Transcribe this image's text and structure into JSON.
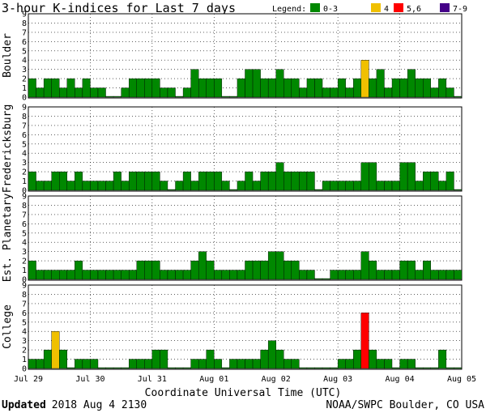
{
  "chart_data": {
    "type": "bar",
    "title": "3-hour K-indices for Last 7 days",
    "xlabel": "Coordinate Universal Time (UTC)",
    "legend": {
      "title": "Legend:",
      "placement": "top-right",
      "items": [
        {
          "label": "0-3",
          "color": "#008800"
        },
        {
          "label": "4",
          "color": "#f0c000"
        },
        {
          "label": "5,6",
          "color": "#ff0000"
        },
        {
          "label": "7-9",
          "color": "#440088"
        }
      ]
    },
    "ylim": [
      0,
      9
    ],
    "yticks": [
      0,
      1,
      2,
      3,
      4,
      5,
      6,
      7,
      8,
      9
    ],
    "x_tick_labels": [
      "Jul 29",
      "Jul 30",
      "Jul 31",
      "Aug 01",
      "Aug 02",
      "Aug 03",
      "Aug 04",
      "Aug 05"
    ],
    "series": [
      {
        "name": "Boulder",
        "values": [
          2,
          1,
          2,
          2,
          1,
          2,
          1,
          2,
          1,
          1,
          0,
          0,
          1,
          2,
          2,
          2,
          2,
          1,
          1,
          0,
          1,
          3,
          2,
          2,
          2,
          0,
          0,
          2,
          3,
          3,
          2,
          2,
          3,
          2,
          2,
          1,
          2,
          2,
          1,
          1,
          2,
          1,
          2,
          4,
          2,
          3,
          1,
          2,
          2,
          3,
          2,
          2,
          1,
          2,
          1,
          0
        ]
      },
      {
        "name": "Fredericksburg",
        "values": [
          2,
          1,
          1,
          2,
          2,
          1,
          2,
          1,
          1,
          1,
          1,
          2,
          1,
          2,
          2,
          2,
          2,
          1,
          0,
          1,
          2,
          1,
          2,
          2,
          2,
          1,
          0,
          1,
          2,
          1,
          2,
          2,
          3,
          2,
          2,
          2,
          2,
          0,
          1,
          1,
          1,
          1,
          1,
          3,
          3,
          1,
          1,
          1,
          3,
          3,
          1,
          2,
          2,
          1,
          2,
          0
        ]
      },
      {
        "name": "Est. Planetary",
        "values": [
          2,
          1,
          1,
          1,
          1,
          1,
          2,
          1,
          1,
          1,
          1,
          1,
          1,
          1,
          2,
          2,
          2,
          1,
          1,
          1,
          1,
          2,
          3,
          2,
          1,
          1,
          1,
          1,
          2,
          2,
          2,
          3,
          3,
          2,
          2,
          1,
          1,
          0,
          0,
          1,
          1,
          1,
          1,
          3,
          2,
          1,
          1,
          1,
          2,
          2,
          1,
          2,
          1,
          1,
          1,
          1
        ]
      },
      {
        "name": "College",
        "values": [
          1,
          1,
          2,
          4,
          2,
          0,
          1,
          1,
          1,
          0,
          0,
          0,
          0,
          1,
          1,
          1,
          2,
          2,
          0,
          0,
          0,
          1,
          1,
          2,
          1,
          0,
          1,
          1,
          1,
          1,
          2,
          3,
          2,
          1,
          1,
          0,
          0,
          0,
          0,
          0,
          1,
          1,
          2,
          6,
          2,
          1,
          1,
          0,
          1,
          1,
          0,
          0,
          0,
          2,
          0,
          0
        ]
      }
    ]
  },
  "footer": {
    "updated_label": "Updated",
    "updated_value": "2018 Aug  4 2130",
    "credit": "NOAA/SWPC Boulder, CO USA"
  }
}
